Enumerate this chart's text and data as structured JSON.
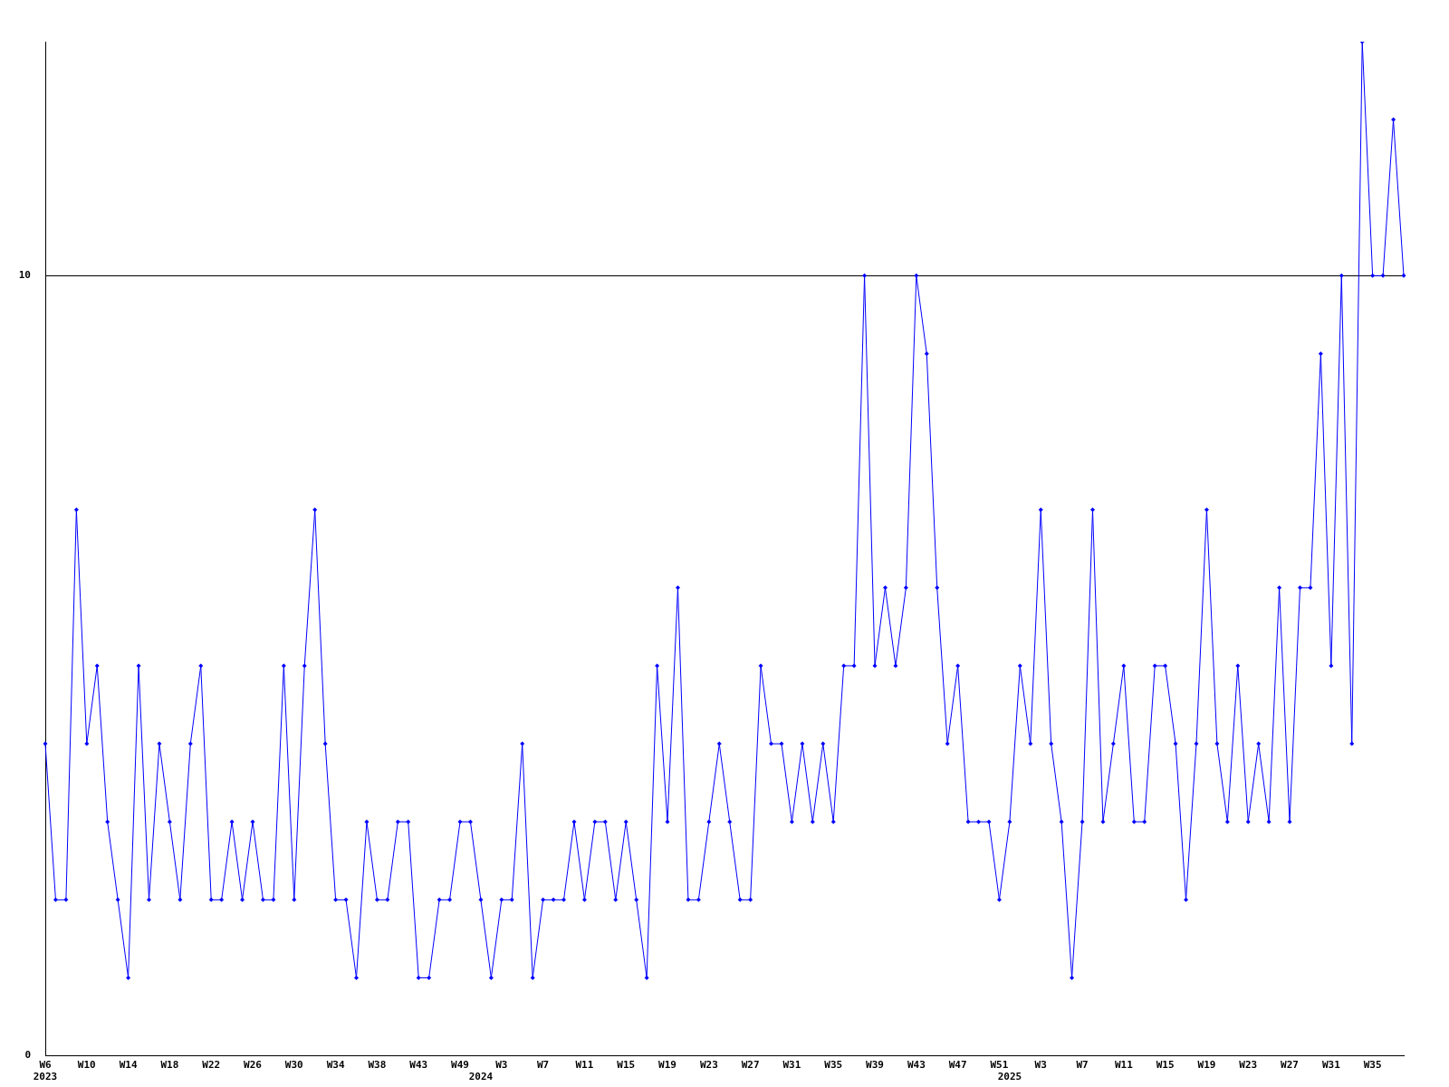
{
  "chart_data": {
    "type": "line",
    "categories": [
      "W6\n2023",
      null,
      null,
      null,
      "W10",
      null,
      null,
      null,
      "W14",
      null,
      null,
      null,
      "W18",
      null,
      null,
      null,
      "W22",
      null,
      null,
      null,
      "W26",
      null,
      null,
      null,
      "W30",
      null,
      null,
      null,
      "W34",
      null,
      null,
      null,
      "W38",
      null,
      null,
      null,
      "W43",
      null,
      null,
      null,
      "W49",
      null,
      "\n2024",
      null,
      "W3",
      null,
      null,
      null,
      "W7",
      null,
      null,
      null,
      "W11",
      null,
      null,
      null,
      "W15",
      null,
      null,
      null,
      "W19",
      null,
      null,
      null,
      "W23",
      null,
      null,
      null,
      "W27",
      null,
      null,
      null,
      "W31",
      null,
      null,
      null,
      "W35",
      null,
      null,
      null,
      "W39",
      null,
      null,
      null,
      "W43",
      null,
      null,
      null,
      "W47",
      null,
      null,
      null,
      "W51",
      "\n2025",
      null,
      null,
      "W3",
      null,
      null,
      null,
      "W7",
      null,
      null,
      null,
      "W11",
      null,
      null,
      null,
      "W15",
      null,
      null,
      null,
      "W19",
      null,
      null,
      null,
      "W23",
      null,
      null,
      null,
      "W27",
      null,
      null,
      null,
      "W31",
      null,
      null,
      null,
      "W35",
      null,
      null,
      null
    ],
    "values": [
      4,
      2,
      2,
      7,
      4,
      5,
      3,
      2,
      1,
      5,
      2,
      4,
      3,
      2,
      4,
      5,
      2,
      2,
      3,
      2,
      3,
      2,
      2,
      5,
      2,
      5,
      7,
      4,
      2,
      2,
      1,
      3,
      2,
      2,
      3,
      3,
      1,
      1,
      2,
      2,
      3,
      3,
      2,
      1,
      2,
      2,
      4,
      1,
      2,
      2,
      2,
      3,
      2,
      3,
      3,
      2,
      3,
      2,
      1,
      5,
      3,
      6,
      2,
      2,
      3,
      4,
      3,
      2,
      2,
      5,
      4,
      4,
      3,
      4,
      3,
      4,
      3,
      5,
      5,
      10,
      5,
      6,
      5,
      6,
      10,
      9,
      6,
      4,
      5,
      3,
      3,
      3,
      2,
      3,
      5,
      4,
      7,
      4,
      3,
      1,
      3,
      7,
      3,
      4,
      5,
      3,
      3,
      5,
      5,
      4,
      2,
      4,
      7,
      4,
      3,
      5,
      3,
      4,
      3,
      6,
      3,
      6,
      6,
      9,
      5,
      10,
      4,
      13,
      10,
      10,
      12,
      10
    ],
    "color": "#0000ff",
    "ylim": [
      0,
      13
    ],
    "yticks": [
      0,
      10
    ],
    "grid": "y",
    "marker": "diamond",
    "line_style": "solid",
    "legend": false
  }
}
